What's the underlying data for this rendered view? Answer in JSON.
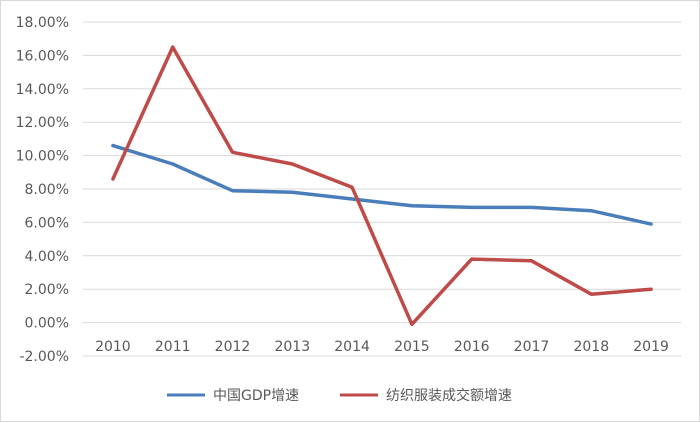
{
  "chart_data": {
    "type": "line",
    "title": "",
    "xlabel": "",
    "ylabel": "",
    "categories": [
      "2010",
      "2011",
      "2012",
      "2013",
      "2014",
      "2015",
      "2016",
      "2017",
      "2018",
      "2019"
    ],
    "ylim": [
      -2,
      18
    ],
    "yticks": [
      -2,
      0,
      2,
      4,
      6,
      8,
      10,
      12,
      14,
      16,
      18
    ],
    "ytick_labels": [
      "-2.00%",
      "0.00%",
      "2.00%",
      "4.00%",
      "6.00%",
      "8.00%",
      "10.00%",
      "12.00%",
      "14.00%",
      "16.00%",
      "18.00%"
    ],
    "grid": true,
    "legend_position": "bottom",
    "series": [
      {
        "name": "中国GDP增速",
        "color": "#4a7ebb",
        "values": [
          10.6,
          9.5,
          7.9,
          7.8,
          7.4,
          7.0,
          6.9,
          6.9,
          6.7,
          5.9
        ]
      },
      {
        "name": "纺织服装成交额增速",
        "color": "#be4b48",
        "values": [
          8.6,
          16.5,
          10.2,
          9.5,
          8.1,
          -0.1,
          3.8,
          3.7,
          1.7,
          2.0
        ]
      }
    ]
  }
}
